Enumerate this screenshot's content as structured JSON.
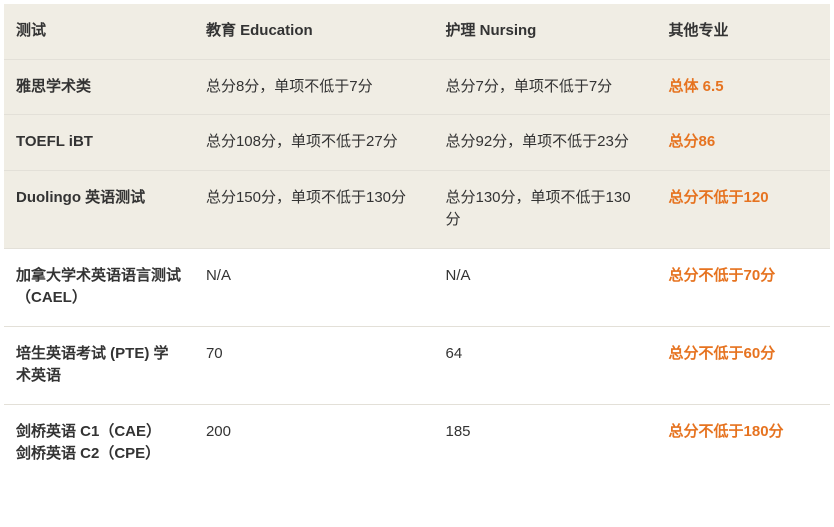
{
  "table": {
    "header_bg": "#f0ede4",
    "tinted_row_bg": "#f0ede4",
    "border_color": "#e3e0d8",
    "text_color": "#333333",
    "highlight_color": "#e67320",
    "font_size": 15,
    "columns": [
      {
        "key": "test",
        "label": "测试",
        "width_pct": 23
      },
      {
        "key": "education",
        "label": "教育 Education",
        "width_pct": 29
      },
      {
        "key": "nursing",
        "label": "护理 Nursing",
        "width_pct": 27
      },
      {
        "key": "other",
        "label": "其他专业",
        "width_pct": 21
      }
    ],
    "rows": [
      {
        "tinted": true,
        "test": "雅思学术类",
        "education": "总分8分，单项不低于7分",
        "nursing": "总分7分，单项不低于7分",
        "other": "总体 6.5"
      },
      {
        "tinted": true,
        "test": "TOEFL iBT",
        "education": "总分108分，单项不低于27分",
        "nursing": "总分92分，单项不低于23分",
        "other": "总分86"
      },
      {
        "tinted": true,
        "test": "Duolingo 英语测试",
        "education": "总分150分，单项不低于130分",
        "nursing": "总分130分，单项不低于130分",
        "other": "总分不低于120"
      },
      {
        "tinted": false,
        "test": "加拿大学术英语语言测试（CAEL）",
        "education": "N/A",
        "nursing": "N/A",
        "other": "总分不低于70分"
      },
      {
        "tinted": false,
        "test": "培生英语考试 (PTE) 学术英语",
        "education": "70",
        "nursing": "64",
        "other": "总分不低于60分"
      },
      {
        "tinted": false,
        "test": "剑桥英语 C1（CAE）\n剑桥英语 C2（CPE）",
        "education": "200",
        "nursing": "185",
        "other": "总分不低于180分"
      }
    ]
  }
}
